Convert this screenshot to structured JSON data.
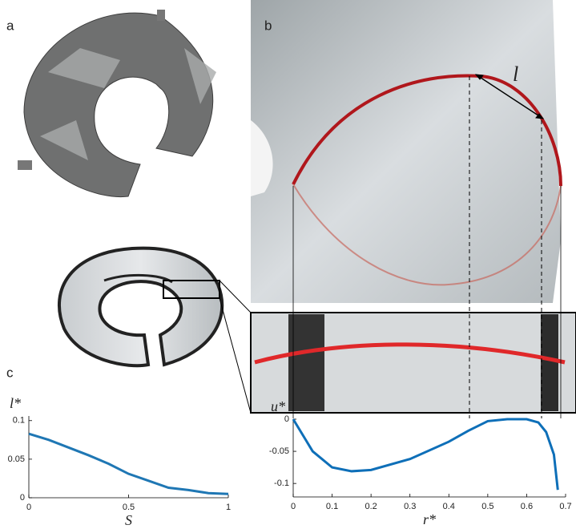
{
  "panel_labels": [
    "a",
    "b",
    "c"
  ],
  "annotation": "l",
  "chart_data": [
    {
      "type": "line",
      "x_label": "S",
      "y_label": "l*",
      "xlim": [
        0,
        1
      ],
      "xticks": [
        0,
        0.5,
        1
      ],
      "ylim": [
        0,
        0.106
      ],
      "yticks": [
        0,
        0.05,
        0.1
      ],
      "series": [
        {
          "color": "#1f77b4",
          "x": [
            0,
            0.1,
            0.2,
            0.3,
            0.4,
            0.5,
            0.6,
            0.7,
            0.8,
            0.9,
            1
          ],
          "values": [
            0.083,
            0.075,
            0.065,
            0.055,
            0.044,
            0.031,
            0.022,
            0.013,
            0.01,
            0.006,
            0.005
          ]
        }
      ]
    },
    {
      "type": "line",
      "x_label": "r*",
      "y_label": "u*",
      "xlim": [
        0,
        0.7
      ],
      "xticks": [
        0,
        0.1,
        0.2,
        0.3,
        0.4,
        0.5,
        0.6,
        0.7
      ],
      "ylim": [
        -0.121,
        0
      ],
      "yticks": [
        0,
        -0.05,
        -0.1
      ],
      "series": [
        {
          "color": "#0e6fb8",
          "x": [
            0,
            0.05,
            0.1,
            0.15,
            0.2,
            0.3,
            0.4,
            0.45,
            0.5,
            0.55,
            0.6,
            0.63,
            0.65,
            0.67,
            0.68
          ],
          "values": [
            0,
            -0.05,
            -0.075,
            -0.081,
            -0.079,
            -0.062,
            -0.035,
            -0.018,
            -0.003,
            0,
            0,
            -0.005,
            -0.02,
            -0.055,
            -0.11
          ]
        }
      ]
    }
  ]
}
